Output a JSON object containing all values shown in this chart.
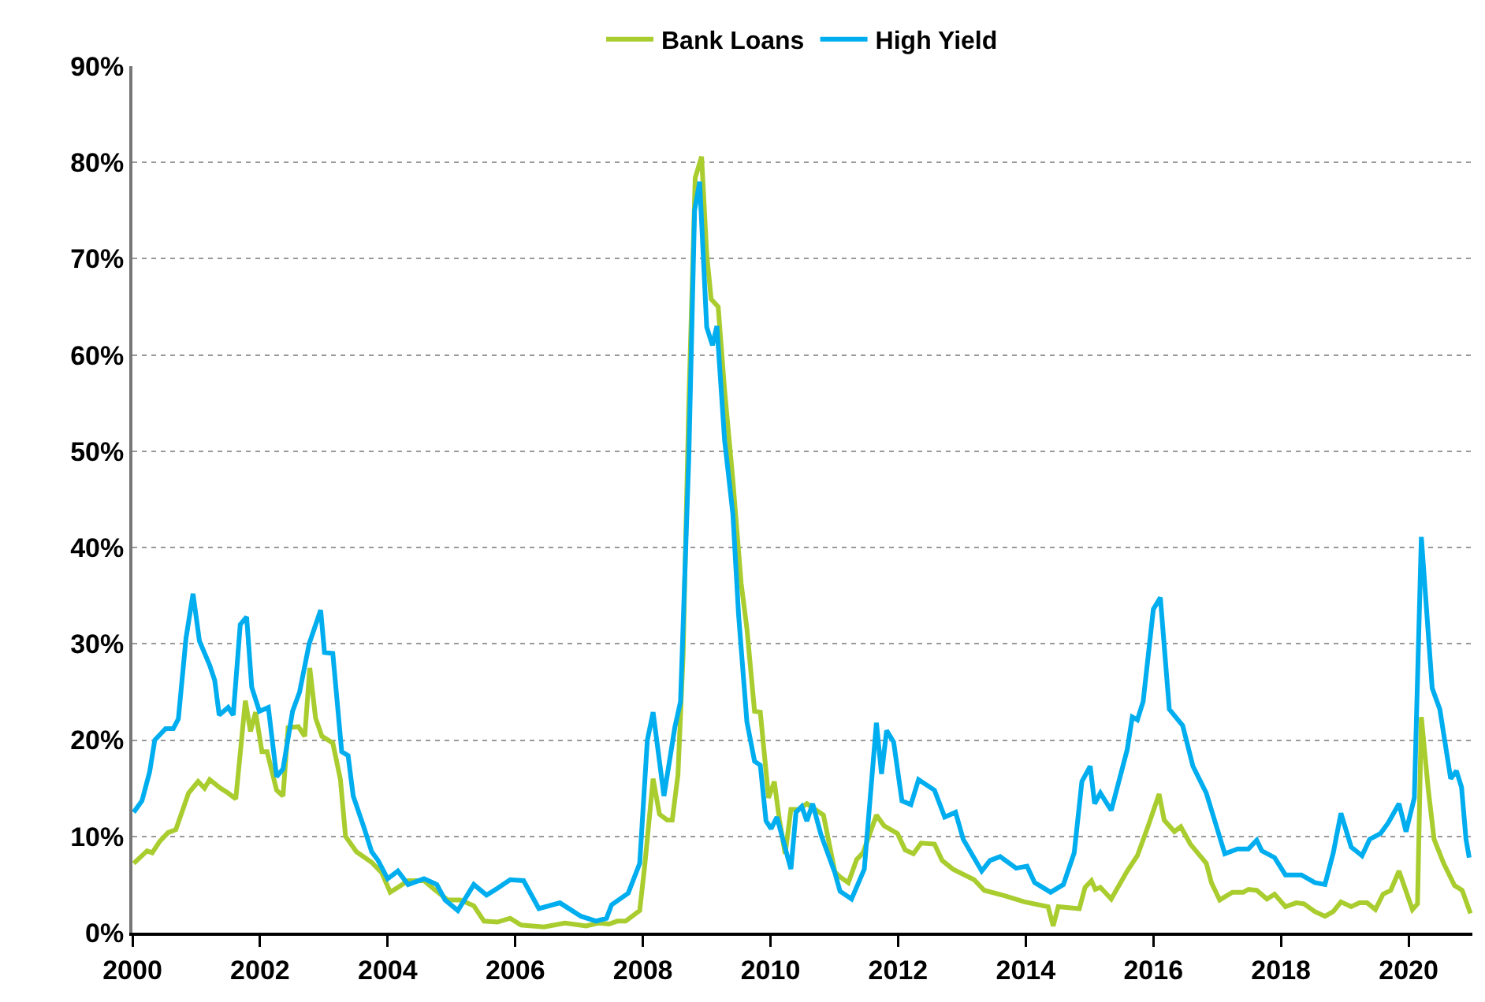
{
  "chart_data": {
    "type": "line",
    "legend": "top",
    "grid": "y",
    "line_style": "solid",
    "xlim": [
      2000,
      2021
    ],
    "xticks": [
      2000,
      2002,
      2004,
      2006,
      2008,
      2010,
      2012,
      2014,
      2016,
      2018,
      2020
    ],
    "ylim": [
      0,
      90
    ],
    "yticks": [
      {
        "value": 0,
        "label": "0%"
      },
      {
        "value": 10,
        "label": "10%"
      },
      {
        "value": 20,
        "label": "20%"
      },
      {
        "value": 30,
        "label": "30%"
      },
      {
        "value": 40,
        "label": "40%"
      },
      {
        "value": 50,
        "label": "50%"
      },
      {
        "value": 60,
        "label": "60%"
      },
      {
        "value": 70,
        "label": "70%"
      },
      {
        "value": 80,
        "label": "80%"
      },
      {
        "value": 90,
        "label": "90%"
      }
    ],
    "series": [
      {
        "name": "Bank Loans",
        "color": "#a9cd2f",
        "x": [
          2000.02,
          2000.23,
          2000.31,
          2000.43,
          2000.56,
          2000.68,
          2000.88,
          2001.03,
          2001.13,
          2001.21,
          2001.38,
          2001.5,
          2001.62,
          2001.77,
          2001.85,
          2001.93,
          2002.03,
          2002.11,
          2002.26,
          2002.36,
          2002.44,
          2002.6,
          2002.7,
          2002.78,
          2002.87,
          2002.97,
          2003.14,
          2003.26,
          2003.34,
          2003.51,
          2003.75,
          2003.91,
          2004.04,
          2004.16,
          2004.32,
          2004.57,
          2004.73,
          2004.94,
          2005.14,
          2005.35,
          2005.51,
          2005.72,
          2005.92,
          2006.09,
          2006.45,
          2006.78,
          2007.11,
          2007.3,
          2007.47,
          2007.6,
          2007.73,
          2007.95,
          2008.03,
          2008.16,
          2008.26,
          2008.38,
          2008.46,
          2008.55,
          2008.63,
          2008.72,
          2008.82,
          2008.92,
          2009.0,
          2009.07,
          2009.18,
          2009.28,
          2009.41,
          2009.54,
          2009.63,
          2009.75,
          2009.84,
          2009.97,
          2010.06,
          2010.14,
          2010.23,
          2010.32,
          2010.44,
          2010.57,
          2010.7,
          2010.83,
          2011.01,
          2011.09,
          2011.22,
          2011.35,
          2011.45,
          2011.66,
          2011.78,
          2011.99,
          2012.11,
          2012.24,
          2012.36,
          2012.57,
          2012.69,
          2012.86,
          2013.19,
          2013.35,
          2013.69,
          2013.98,
          2014.35,
          2014.43,
          2014.51,
          2014.84,
          2014.93,
          2015.03,
          2015.09,
          2015.17,
          2015.34,
          2015.59,
          2015.75,
          2015.92,
          2016.09,
          2016.17,
          2016.33,
          2016.43,
          2016.58,
          2016.83,
          2016.91,
          2017.04,
          2017.24,
          2017.41,
          2017.49,
          2017.62,
          2017.78,
          2017.9,
          2018.07,
          2018.24,
          2018.36,
          2018.53,
          2018.69,
          2018.82,
          2018.94,
          2019.1,
          2019.23,
          2019.35,
          2019.48,
          2019.6,
          2019.72,
          2019.85,
          2020.06,
          2020.14,
          2020.2,
          2020.31,
          2020.4,
          2020.55,
          2020.72,
          2020.84,
          2020.97
        ],
        "values": [
          7.2,
          8.5,
          8.3,
          9.5,
          10.4,
          10.7,
          14.5,
          15.7,
          15,
          15.9,
          15,
          14.5,
          13.9,
          24.1,
          20.9,
          22.9,
          18.8,
          18.8,
          14.8,
          14.2,
          21.3,
          21.4,
          20.4,
          27.5,
          22.3,
          20.4,
          19.7,
          15.9,
          10,
          8.4,
          7.3,
          6.2,
          4.2,
          4.7,
          5.4,
          5.4,
          4.5,
          3.4,
          3.4,
          2.8,
          1.2,
          1.1,
          1.5,
          0.8,
          0.6,
          1,
          0.7,
          1,
          0.9,
          1.2,
          1.2,
          2.3,
          7,
          16,
          12.3,
          11.7,
          11.7,
          16.4,
          28.8,
          55,
          78.4,
          80.6,
          70.5,
          65.8,
          65,
          56.4,
          47,
          36.3,
          31.6,
          23,
          22.9,
          14,
          15.7,
          11.7,
          8.2,
          12.8,
          12.8,
          13.4,
          12.8,
          12.2,
          6.3,
          5.8,
          5.2,
          7.6,
          8.3,
          12.2,
          11.1,
          10.3,
          8.6,
          8.2,
          9.3,
          9.2,
          7.5,
          6.6,
          5.5,
          4.4,
          3.8,
          3.2,
          2.7,
          0.7,
          2.7,
          2.5,
          4.7,
          5.4,
          4.5,
          4.7,
          3.5,
          6.4,
          8,
          11.1,
          14.4,
          11.7,
          10.5,
          11,
          9.2,
          7.2,
          5.2,
          3.4,
          4.2,
          4.2,
          4.5,
          4.4,
          3.5,
          4,
          2.7,
          3.1,
          3,
          2.2,
          1.7,
          2.2,
          3.2,
          2.7,
          3.1,
          3.1,
          2.4,
          4,
          4.4,
          6.4,
          2.4,
          3,
          22.4,
          14.8,
          9.7,
          7.2,
          4.9,
          4.4,
          2
        ]
      },
      {
        "name": "High Yield",
        "color": "#00aeef",
        "x": [
          2000.02,
          2000.15,
          2000.27,
          2000.35,
          2000.52,
          2000.64,
          2000.72,
          2000.84,
          2000.95,
          2001.05,
          2001.21,
          2001.29,
          2001.36,
          2001.5,
          2001.58,
          2001.69,
          2001.79,
          2001.87,
          2001.99,
          2002.13,
          2002.26,
          2002.36,
          2002.51,
          2002.62,
          2002.77,
          2002.95,
          2003.01,
          2003.14,
          2003.28,
          2003.38,
          2003.46,
          2003.63,
          2003.75,
          2003.85,
          2004.0,
          2004.16,
          2004.32,
          2004.57,
          2004.77,
          2004.9,
          2005.1,
          2005.35,
          2005.55,
          2005.72,
          2005.92,
          2006.13,
          2006.37,
          2006.7,
          2007.03,
          2007.27,
          2007.43,
          2007.51,
          2007.77,
          2007.95,
          2008.07,
          2008.16,
          2008.33,
          2008.5,
          2008.59,
          2008.72,
          2008.81,
          2008.89,
          2009.0,
          2009.09,
          2009.16,
          2009.28,
          2009.41,
          2009.5,
          2009.63,
          2009.75,
          2009.84,
          2009.93,
          2010.01,
          2010.1,
          2010.32,
          2010.4,
          2010.49,
          2010.57,
          2010.66,
          2010.79,
          2011.01,
          2011.09,
          2011.27,
          2011.47,
          2011.66,
          2011.74,
          2011.82,
          2011.93,
          2012.06,
          2012.2,
          2012.32,
          2012.57,
          2012.73,
          2012.9,
          2013.02,
          2013.31,
          2013.44,
          2013.6,
          2013.85,
          2014.02,
          2014.14,
          2014.39,
          2014.59,
          2014.76,
          2014.88,
          2015.01,
          2015.08,
          2015.17,
          2015.34,
          2015.59,
          2015.67,
          2015.75,
          2015.84,
          2016.0,
          2016.11,
          2016.25,
          2016.46,
          2016.62,
          2016.83,
          2017.0,
          2017.12,
          2017.32,
          2017.49,
          2017.62,
          2017.7,
          2017.9,
          2018.07,
          2018.32,
          2018.53,
          2018.69,
          2018.82,
          2018.94,
          2019.1,
          2019.27,
          2019.39,
          2019.56,
          2019.68,
          2019.85,
          2019.96,
          2020.09,
          2020.2,
          2020.37,
          2020.49,
          2020.66,
          2020.75,
          2020.83,
          2020.9,
          2020.95
        ],
        "values": [
          12.5,
          13.7,
          16.7,
          20,
          21.2,
          21.2,
          22.2,
          30.6,
          35.2,
          30.3,
          27.8,
          26.2,
          22.6,
          23.4,
          22.6,
          32,
          32.8,
          25.5,
          23,
          23.4,
          16.2,
          17,
          23,
          25,
          30,
          33.5,
          29.1,
          29,
          18.8,
          18.4,
          14.2,
          10.9,
          8.4,
          7.5,
          5.6,
          6.4,
          5,
          5.6,
          5,
          3.4,
          2.3,
          5,
          3.9,
          4.6,
          5.5,
          5.4,
          2.5,
          3.1,
          1.7,
          1.2,
          1.5,
          2.9,
          4.1,
          7.2,
          20,
          22.9,
          14.2,
          21.3,
          24,
          49.4,
          75,
          78,
          62.9,
          61,
          63,
          51.2,
          43.5,
          33,
          21.9,
          17.8,
          17.4,
          11.6,
          10.8,
          12,
          6.6,
          12.5,
          13.1,
          11.6,
          13.4,
          10.2,
          6.2,
          4.3,
          3.5,
          6.6,
          21.8,
          16.5,
          21,
          19.8,
          13.7,
          13.3,
          15.9,
          14.8,
          12,
          12.5,
          9.7,
          6.4,
          7.5,
          7.9,
          6.7,
          6.9,
          5.2,
          4.2,
          5,
          8.3,
          15.7,
          17.3,
          13.4,
          14.5,
          12.7,
          19,
          22.4,
          22.1,
          24,
          33.6,
          34.8,
          23.2,
          21.5,
          17.3,
          14.5,
          10.8,
          8.2,
          8.7,
          8.7,
          9.6,
          8.5,
          7.8,
          6,
          6,
          5.2,
          5,
          8.3,
          12.4,
          8.9,
          8,
          9.7,
          10.3,
          11.4,
          13.4,
          10.5,
          14,
          41.1,
          25.4,
          23.2,
          16,
          16.8,
          15.1,
          9.7,
          7.8
        ]
      }
    ]
  }
}
